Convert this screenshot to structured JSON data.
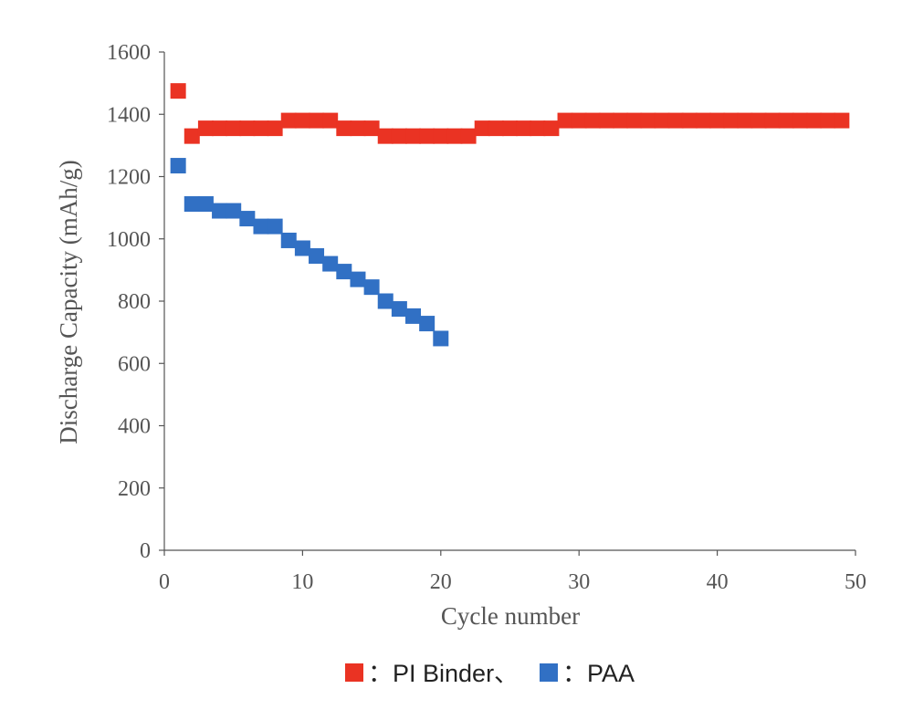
{
  "chart_data": {
    "type": "scatter",
    "title": "",
    "xlabel": "Cycle number",
    "ylabel": "Discharge Capacity (mAh/g)",
    "xlim": [
      0,
      50
    ],
    "ylim": [
      0,
      1600
    ],
    "xticks": [
      0,
      10,
      20,
      30,
      40,
      50
    ],
    "yticks": [
      0,
      200,
      400,
      600,
      800,
      1000,
      1200,
      1400,
      1600
    ],
    "grid": false,
    "legend_position": "bottom",
    "series": [
      {
        "name": "PI Binder、",
        "legend_label": "：PI Binder、",
        "color": "#ea3323",
        "marker": "square",
        "x": [
          1,
          2,
          3,
          4,
          5,
          6,
          7,
          8,
          9,
          10,
          11,
          12,
          13,
          14,
          15,
          16,
          17,
          18,
          19,
          20,
          21,
          22,
          23,
          24,
          25,
          26,
          27,
          28,
          29,
          30,
          31,
          32,
          33,
          34,
          35,
          36,
          37,
          38,
          39,
          40,
          41,
          42,
          43,
          44,
          45,
          46,
          47,
          48,
          49
        ],
        "y": [
          1475,
          1330,
          1355,
          1355,
          1355,
          1355,
          1355,
          1355,
          1380,
          1380,
          1380,
          1380,
          1355,
          1355,
          1355,
          1330,
          1330,
          1330,
          1330,
          1330,
          1330,
          1330,
          1355,
          1355,
          1355,
          1355,
          1355,
          1355,
          1380,
          1380,
          1380,
          1380,
          1380,
          1380,
          1380,
          1380,
          1380,
          1380,
          1380,
          1380,
          1380,
          1380,
          1380,
          1380,
          1380,
          1380,
          1380,
          1380,
          1380
        ]
      },
      {
        "name": "PAA",
        "legend_label": "：PAA",
        "color": "#3170c4",
        "marker": "square",
        "x": [
          1,
          2,
          3,
          4,
          5,
          6,
          7,
          8,
          9,
          10,
          11,
          12,
          13,
          14,
          15,
          16,
          17,
          18,
          19,
          20
        ],
        "y": [
          1235,
          1112,
          1112,
          1090,
          1090,
          1065,
          1040,
          1040,
          995,
          970,
          945,
          920,
          895,
          870,
          845,
          800,
          775,
          752,
          728,
          680
        ]
      }
    ]
  }
}
